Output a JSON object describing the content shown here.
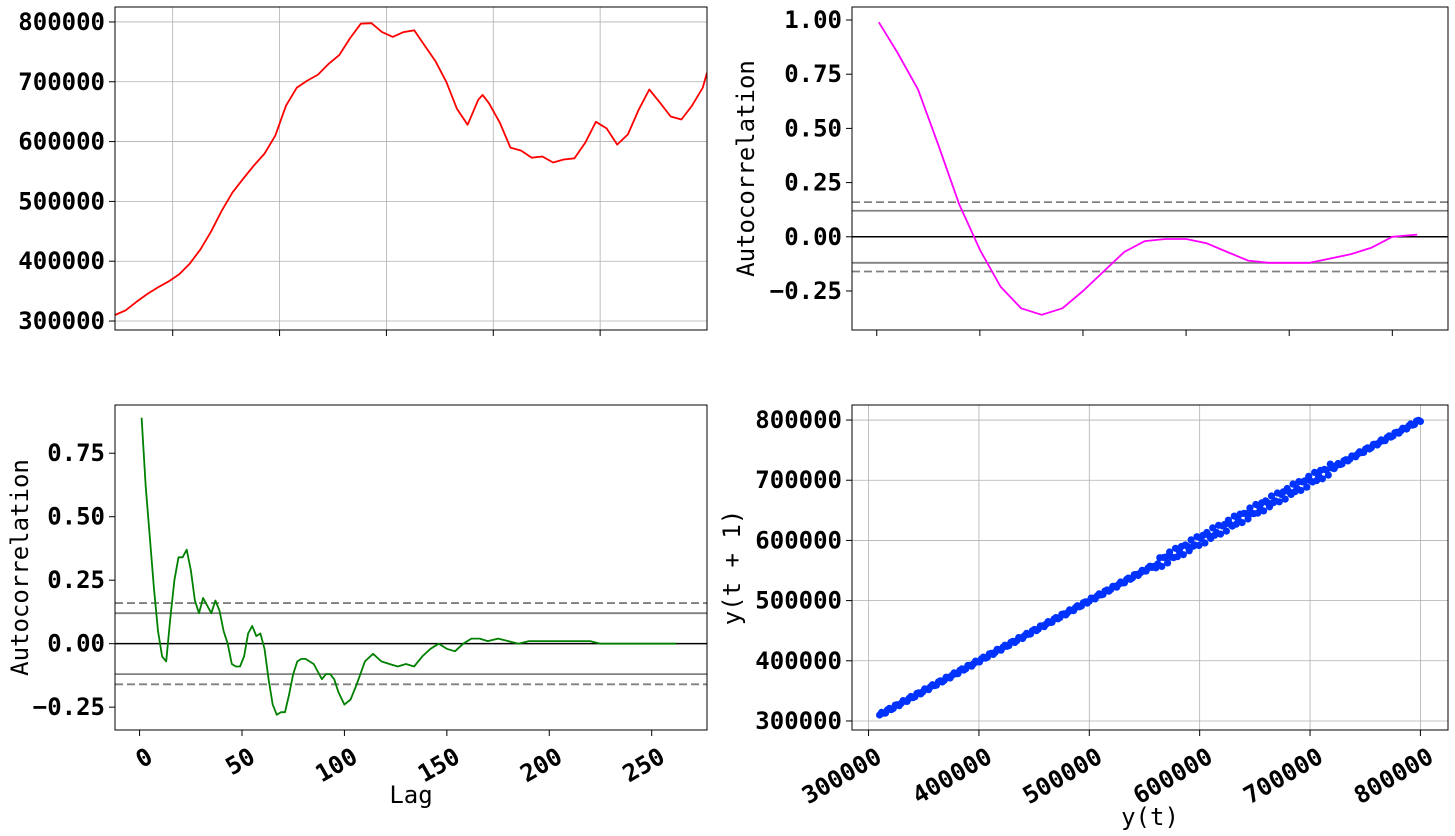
{
  "chart_data": [
    {
      "id": "series",
      "type": "line",
      "title": "",
      "xlabel": "",
      "ylabel": "",
      "grid": true,
      "xlim": [
        0,
        277
      ],
      "ylim": [
        285000,
        825000
      ],
      "yticks": [
        300000,
        400000,
        500000,
        600000,
        700000,
        800000
      ],
      "xtick_values": [
        27,
        77,
        127,
        177,
        227
      ],
      "color": "#ff0000",
      "series": [
        {
          "x": [
            0,
            5,
            10,
            15,
            20,
            25,
            30,
            35,
            40,
            45,
            50,
            55,
            60,
            65,
            70,
            75,
            80,
            85,
            90,
            95,
            100,
            105,
            110,
            115,
            120,
            125,
            130,
            135,
            140,
            145,
            150,
            155,
            160,
            165,
            170,
            172,
            175,
            180,
            185,
            190,
            195,
            200,
            205,
            210,
            215,
            220,
            225,
            230,
            235,
            240,
            245,
            250,
            255,
            260,
            265,
            270,
            275,
            277
          ],
          "y": [
            310000,
            318000,
            332000,
            345000,
            356000,
            366000,
            378000,
            396000,
            420000,
            450000,
            485000,
            515000,
            538000,
            560000,
            580000,
            610000,
            660000,
            690000,
            702000,
            712000,
            730000,
            745000,
            773000,
            797000,
            798000,
            783000,
            775000,
            783000,
            786000,
            760000,
            734000,
            700000,
            655000,
            628000,
            670000,
            678000,
            664000,
            632000,
            590000,
            585000,
            573000,
            575000,
            565000,
            570000,
            572000,
            598000,
            633000,
            622000,
            595000,
            612000,
            653000,
            687000,
            665000,
            642000,
            637000,
            660000,
            690000,
            715000
          ]
        }
      ]
    },
    {
      "id": "acf-top",
      "type": "line",
      "title": "",
      "xlabel": "",
      "ylabel": "Autocorrelation",
      "grid": false,
      "xlim": [
        -12,
        277
      ],
      "ylim": [
        -0.43,
        1.06
      ],
      "yticks": [
        -0.25,
        0.0,
        0.25,
        0.5,
        0.75,
        1.0
      ],
      "ytick_labels": [
        "−0.25",
        "0.00",
        "0.25",
        "0.50",
        "0.75",
        "1.00"
      ],
      "xtick_values": [
        0,
        50,
        100,
        150,
        200,
        250
      ],
      "color": "#ff00ff",
      "conf_solid": 0.12,
      "conf_dashed": 0.16,
      "series": [
        {
          "x": [
            1,
            10,
            20,
            30,
            40,
            50,
            60,
            70,
            80,
            90,
            100,
            110,
            120,
            130,
            140,
            150,
            160,
            170,
            180,
            190,
            200,
            210,
            220,
            230,
            240,
            250,
            262
          ],
          "y": [
            0.99,
            0.85,
            0.68,
            0.42,
            0.15,
            -0.06,
            -0.23,
            -0.33,
            -0.36,
            -0.33,
            -0.25,
            -0.16,
            -0.07,
            -0.02,
            -0.01,
            -0.01,
            -0.03,
            -0.07,
            -0.11,
            -0.12,
            -0.12,
            -0.12,
            -0.1,
            -0.08,
            -0.05,
            0.0,
            0.01
          ]
        }
      ]
    },
    {
      "id": "acf-bottom",
      "type": "line",
      "title": "",
      "xlabel": "Lag",
      "ylabel": "Autocorrelation",
      "grid": false,
      "xlim": [
        -12,
        277
      ],
      "ylim": [
        -0.34,
        0.94
      ],
      "yticks": [
        -0.25,
        0.0,
        0.25,
        0.5,
        0.75
      ],
      "ytick_labels": [
        "−0.25",
        "0.00",
        "0.25",
        "0.50",
        "0.75"
      ],
      "xtick_values": [
        0,
        50,
        100,
        150,
        200,
        250
      ],
      "xtick_labels": [
        "0",
        "50",
        "100",
        "150",
        "200",
        "250"
      ],
      "color": "#008000",
      "conf_solid": 0.12,
      "conf_dashed": 0.16,
      "series": [
        {
          "x": [
            1,
            3,
            5,
            7,
            9,
            11,
            13,
            15,
            17,
            19,
            21,
            23,
            25,
            27,
            29,
            31,
            33,
            35,
            37,
            39,
            41,
            43,
            45,
            47,
            49,
            51,
            53,
            55,
            57,
            59,
            61,
            63,
            65,
            67,
            69,
            71,
            73,
            75,
            77,
            79,
            81,
            85,
            89,
            91,
            93,
            95,
            97,
            100,
            103,
            106,
            110,
            114,
            118,
            122,
            126,
            130,
            134,
            138,
            142,
            146,
            150,
            154,
            158,
            162,
            166,
            170,
            175,
            180,
            185,
            190,
            195,
            200,
            205,
            210,
            215,
            220,
            225,
            230,
            235,
            240,
            245,
            250,
            255,
            262
          ],
          "y": [
            0.89,
            0.62,
            0.42,
            0.22,
            0.05,
            -0.05,
            -0.07,
            0.1,
            0.25,
            0.34,
            0.34,
            0.37,
            0.29,
            0.17,
            0.12,
            0.18,
            0.15,
            0.12,
            0.17,
            0.13,
            0.05,
            0.0,
            -0.08,
            -0.09,
            -0.09,
            -0.05,
            0.04,
            0.07,
            0.03,
            0.04,
            -0.02,
            -0.14,
            -0.24,
            -0.28,
            -0.27,
            -0.27,
            -0.2,
            -0.12,
            -0.07,
            -0.06,
            -0.06,
            -0.08,
            -0.14,
            -0.12,
            -0.12,
            -0.14,
            -0.19,
            -0.24,
            -0.22,
            -0.16,
            -0.07,
            -0.04,
            -0.07,
            -0.08,
            -0.09,
            -0.08,
            -0.09,
            -0.05,
            -0.02,
            0.0,
            -0.02,
            -0.03,
            0.0,
            0.02,
            0.02,
            0.01,
            0.02,
            0.01,
            0.0,
            0.01,
            0.01,
            0.01,
            0.01,
            0.01,
            0.01,
            0.01,
            0.0,
            0.0,
            0.0,
            0.0,
            0.0,
            0.0,
            0.0,
            0.0
          ]
        }
      ]
    },
    {
      "id": "lag-plot",
      "type": "scatter",
      "title": "",
      "xlabel": "y(t)",
      "ylabel": "y(t + 1)",
      "grid": true,
      "xlim": [
        285000,
        825000
      ],
      "ylim": [
        285000,
        825000
      ],
      "xticks": [
        300000,
        400000,
        500000,
        600000,
        700000,
        800000
      ],
      "yticks": [
        300000,
        400000,
        500000,
        600000,
        700000,
        800000
      ],
      "color": "#0033ff",
      "points_trend": {
        "x_start": 310000,
        "x_end": 800000,
        "count": 277
      }
    }
  ]
}
